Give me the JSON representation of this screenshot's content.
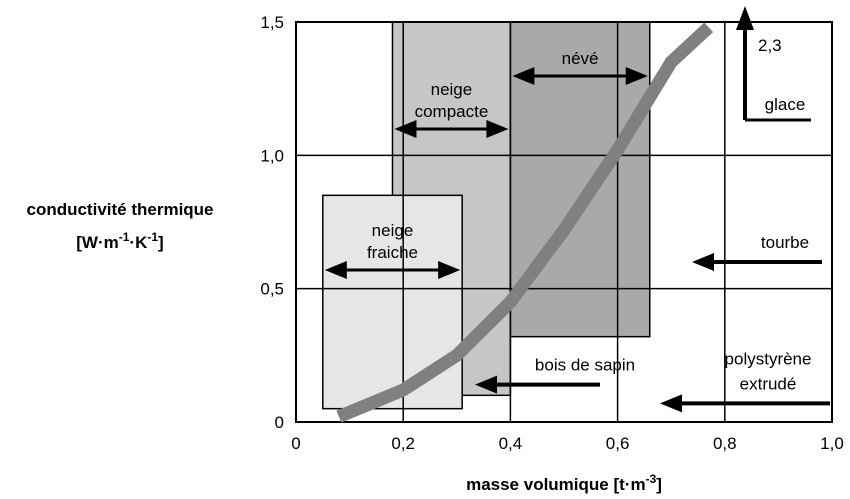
{
  "chart_data": {
    "type": "region-curve",
    "xlabel": {
      "text": "masse volumique  [t·m",
      "sup": "-3",
      "end": "]"
    },
    "ylabel": {
      "line1": "conductivité thermique",
      "line2": {
        "a": "[W·m",
        "sup1": "-1",
        "b": "·K",
        "sup2": "-1",
        "c": "]"
      }
    },
    "xlim": [
      0,
      1
    ],
    "ylim": [
      0,
      1.5
    ],
    "xticks": [
      0,
      {
        "value": 0.2,
        "label": "0,2"
      },
      {
        "value": 0.4,
        "label": "0,4"
      },
      {
        "value": 0.6,
        "label": "0,6"
      },
      {
        "value": 0.8,
        "label": "0,8"
      },
      {
        "value": 1,
        "label": "1,0"
      }
    ],
    "yticks": [
      0,
      {
        "value": 0.5,
        "label": "0,5"
      },
      {
        "value": 1,
        "label": "1,0"
      },
      {
        "value": 1.5,
        "label": "1,5"
      }
    ],
    "grid": true,
    "regions": [
      {
        "lines": [
          "neige",
          "compacte"
        ],
        "x": [
          0.18,
          0.4
        ],
        "y": [
          0.1,
          1.5
        ],
        "color": "#c6c6c6"
      },
      {
        "lines": [
          "névé"
        ],
        "x": [
          0.4,
          0.66
        ],
        "y": [
          0.32,
          1.5
        ],
        "color": "#a9a9a9"
      },
      {
        "lines": [
          "neige",
          "fraiche"
        ],
        "x": [
          0.05,
          0.31
        ],
        "y": [
          0.05,
          0.85
        ],
        "color": "#e6e6e6"
      }
    ],
    "curve": {
      "color": "#808080",
      "x": [
        0.08,
        0.2,
        0.3,
        0.4,
        0.5,
        0.6,
        0.7,
        0.77
      ],
      "values": [
        0.02,
        0.12,
        0.25,
        0.45,
        0.72,
        1.02,
        1.35,
        1.48
      ]
    },
    "annotations": [
      {
        "lines": [
          "tourbe"
        ],
        "value": 0.6
      },
      {
        "lines": [
          "bois de sapin"
        ],
        "value": 0.14
      },
      {
        "lines": [
          "polystyrène",
          "extrudé"
        ],
        "value": 0.07
      }
    ],
    "glace": {
      "label": "glace",
      "value": 2.3,
      "value_label": "2,3"
    }
  }
}
